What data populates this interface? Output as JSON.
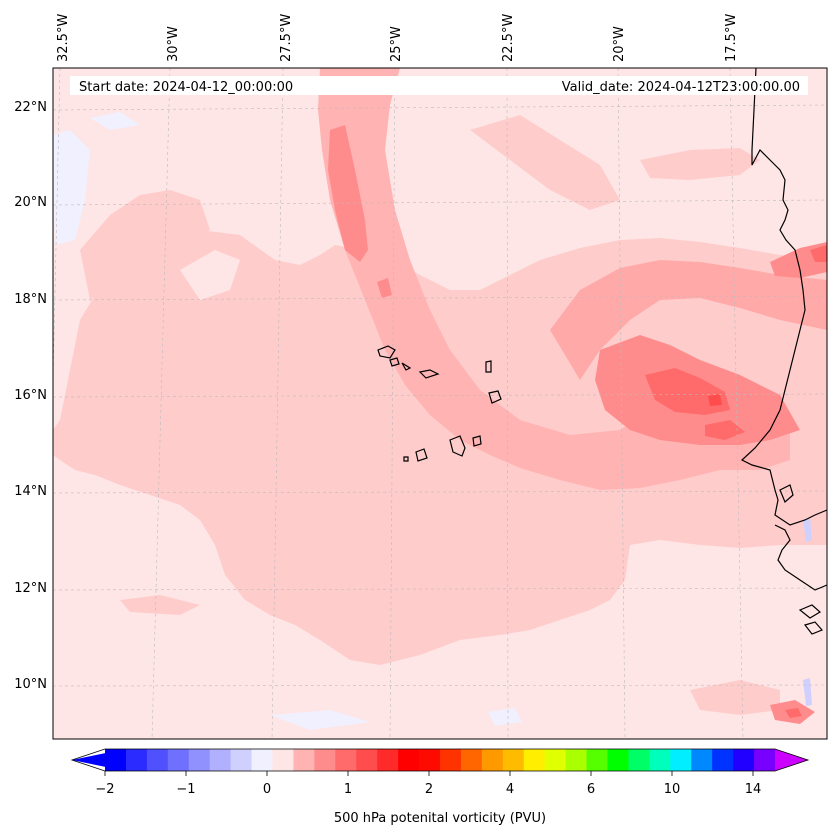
{
  "header": {
    "start_label": "Start date: 2024-04-12_00:00:00",
    "valid_label": "Valid_date: 2024-04-12T23:00:00.00"
  },
  "map": {
    "lon_ticks": [
      "32.5°W",
      "30°W",
      "27.5°W",
      "25°W",
      "22.5°W",
      "20°W",
      "17.5°W"
    ],
    "lat_ticks": [
      "22°N",
      "20°N",
      "18°N",
      "16°N",
      "14°N",
      "12°N",
      "10°N"
    ],
    "background_color": "#ffe6e6",
    "coastline_color": "#000000"
  },
  "colorbar": {
    "label": "500 hPa potenital vorticity (PVU)",
    "tick_labels": [
      "−2",
      "−1",
      "0",
      "1",
      "2",
      "4",
      "6",
      "10",
      "14"
    ],
    "colors": [
      "#0000ff",
      "#2b2bff",
      "#5050ff",
      "#7070ff",
      "#9090ff",
      "#b0b0ff",
      "#d0d0ff",
      "#f0f0ff",
      "#ffe6e6",
      "#ffb3b3",
      "#ff8c8c",
      "#ff6b6b",
      "#ff4d4d",
      "#ff2a2a",
      "#ff0000",
      "#ff0a00",
      "#ff3300",
      "#ff6600",
      "#ff9900",
      "#ffbb00",
      "#ffee00",
      "#e0ff00",
      "#aaff00",
      "#55ff00",
      "#00ff00",
      "#00ff66",
      "#00ffbb",
      "#00eeff",
      "#0088ff",
      "#0033ff",
      "#2200ff",
      "#7700ff"
    ],
    "under_color": "#0000ff",
    "over_color": "#cc00ff"
  }
}
